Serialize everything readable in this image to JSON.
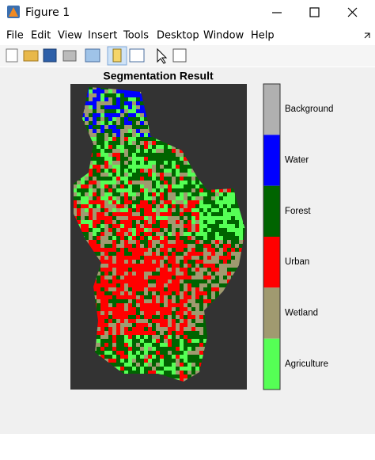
{
  "window": {
    "title": "Figure 1"
  },
  "menu": [
    "File",
    "Edit",
    "View",
    "Insert",
    "Tools",
    "Desktop",
    "Window",
    "Help"
  ],
  "figure": {
    "title": "Segmentation Result",
    "classes": [
      {
        "name": "Background",
        "color": "#b0b0b0"
      },
      {
        "name": "Water",
        "color": "#0000ff"
      },
      {
        "name": "Forest",
        "color": "#006400"
      },
      {
        "name": "Urban",
        "color": "#ff0000"
      },
      {
        "name": "Wetland",
        "color": "#a09a70"
      },
      {
        "name": "Agriculture",
        "color": "#55ff55"
      }
    ]
  }
}
